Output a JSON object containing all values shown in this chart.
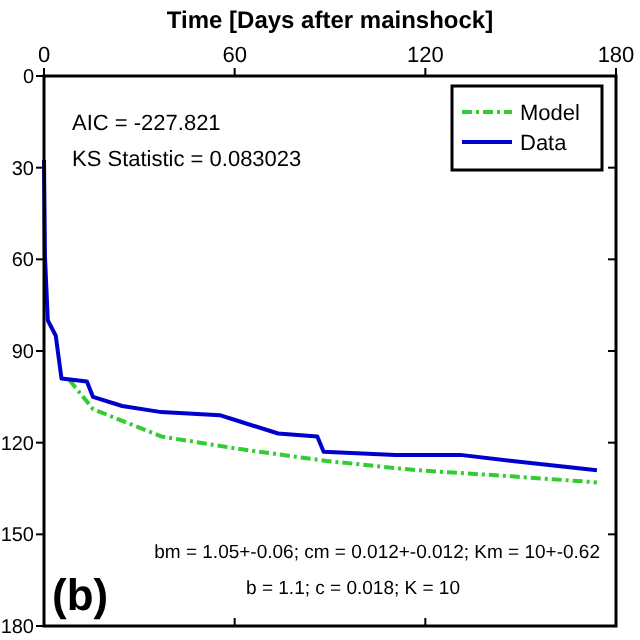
{
  "chart_data": {
    "type": "line",
    "xlabel": "Time [Days after mainshock]",
    "xlim": [
      0,
      180
    ],
    "xticks": [
      0,
      60,
      120,
      180
    ],
    "ylim": [
      180,
      0
    ],
    "yticks": [
      0,
      30,
      60,
      90,
      120,
      150,
      180
    ],
    "legend": "top right",
    "grid": false,
    "annotations": [
      "AIC = -227.821",
      "KS Statistic = 0.083023",
      "bm = 1.05+-0.06; cm = 0.012+-0.012; Km = 10+-0.62",
      "b = 1.1; c = 0.018; K = 10",
      "(b)"
    ],
    "series": [
      {
        "name": "Model",
        "color": "#33cc33",
        "line_style": "dashed",
        "x": [
          8,
          15.4,
          37,
          61,
          89,
          117,
          147,
          174
        ],
        "values": [
          99.5,
          109,
          118,
          122,
          126,
          129,
          131,
          133
        ]
      },
      {
        "name": "Data",
        "color": "#0000cc",
        "line_style": "solid",
        "x": [
          0,
          0.3,
          1.2,
          3.7,
          5.5,
          13.5,
          15.4,
          24.6,
          36.9,
          55.3,
          61.4,
          73.7,
          86,
          88,
          110.6,
          131,
          147.4,
          174
        ],
        "values": [
          27.5,
          59,
          80,
          85,
          99,
          100,
          105,
          108,
          110,
          111,
          113,
          117,
          118,
          123,
          124,
          124,
          126,
          129
        ]
      }
    ]
  }
}
